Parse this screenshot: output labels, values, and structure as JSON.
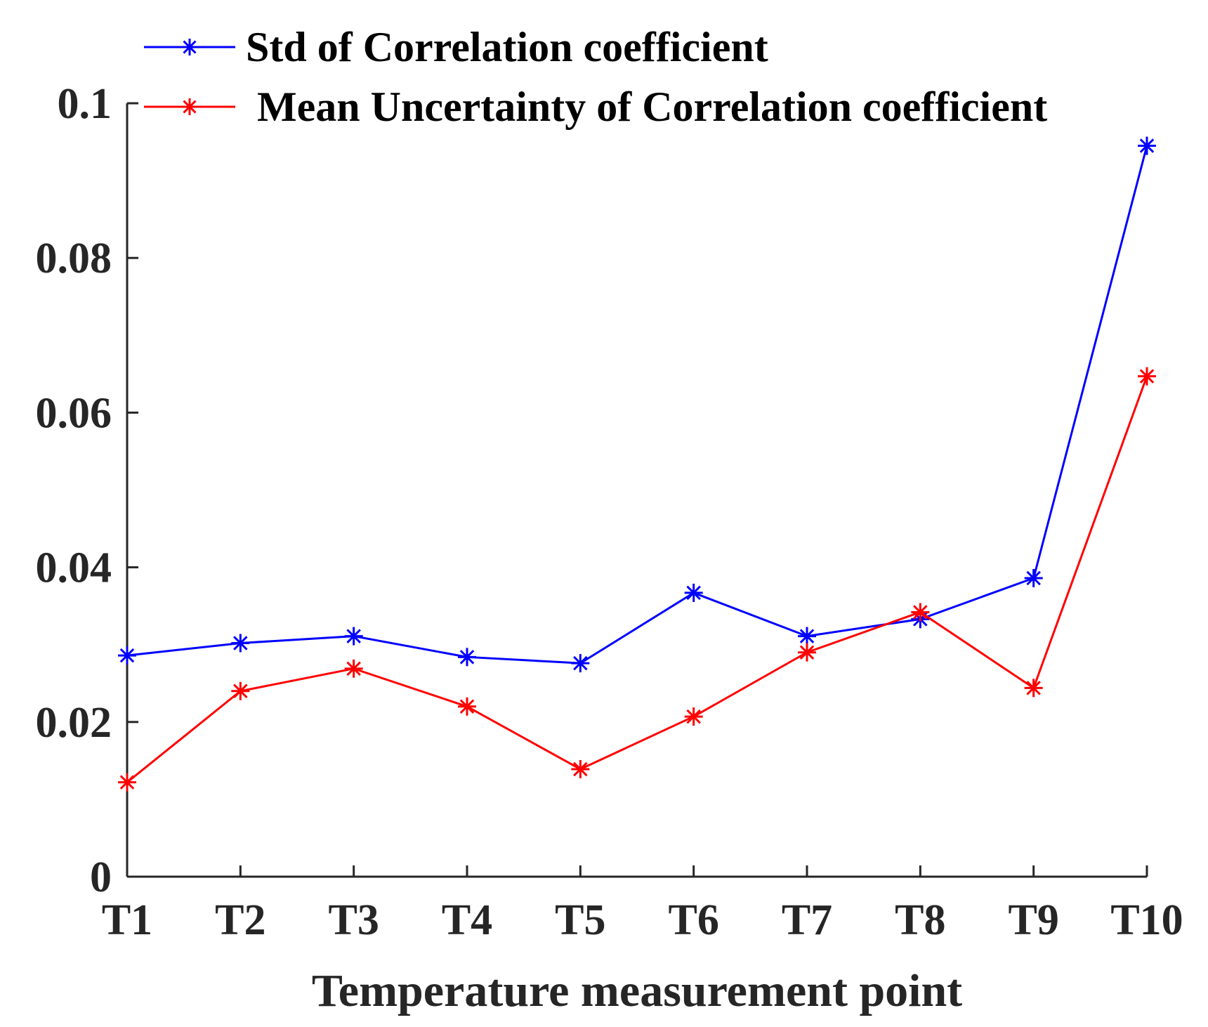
{
  "chart_data": {
    "type": "line",
    "title": "",
    "xlabel": "Temperature measurement point",
    "ylabel": "",
    "categories": [
      "T1",
      "T2",
      "T3",
      "T4",
      "T5",
      "T6",
      "T7",
      "T8",
      "T9",
      "T10"
    ],
    "ylim": [
      0,
      0.1
    ],
    "yticks": [
      0,
      0.02,
      0.04,
      0.06,
      0.08,
      0.1
    ],
    "ytick_labels": [
      "0",
      "0.02",
      "0.04",
      "0.06",
      "0.08",
      "0.1"
    ],
    "grid": false,
    "legend_position": "top",
    "series": [
      {
        "name": "Std of Correlation coefficient",
        "color": "#0000ff",
        "marker": "asterisk",
        "values": [
          0.0286,
          0.0302,
          0.0311,
          0.0284,
          0.0276,
          0.0367,
          0.0311,
          0.0333,
          0.0386,
          0.0945
        ]
      },
      {
        "name": "Mean Uncertainty of Correlation coefficient",
        "color": "#ff0000",
        "marker": "asterisk",
        "values": [
          0.0122,
          0.024,
          0.0269,
          0.022,
          0.0139,
          0.0207,
          0.029,
          0.0342,
          0.0244,
          0.0647
        ]
      }
    ]
  }
}
